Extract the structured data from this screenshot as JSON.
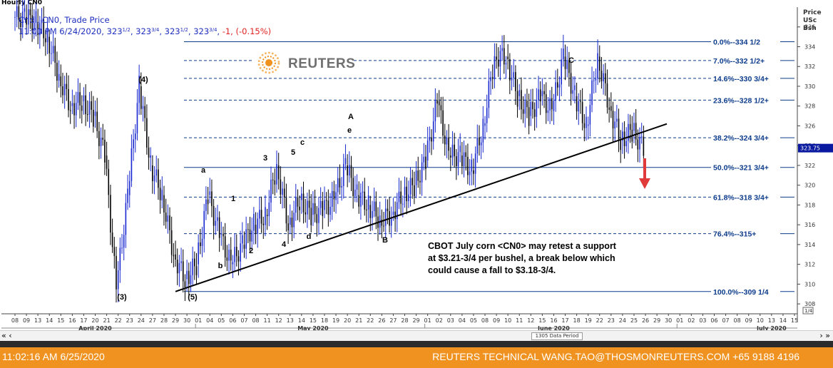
{
  "window": {
    "title": "Hourly CN0"
  },
  "info": {
    "line1": "Cndl, CN0, Trade Price",
    "line2_prefix": "11:00 PM 6/24/2020, 323",
    "open_frac": "1/2",
    "high": "323",
    "high_frac": "3/4",
    "low": "323",
    "low_frac": "1/2",
    "close": "323",
    "close_frac": "3/4",
    "change": "-1, (-0.15%)"
  },
  "logo": {
    "text": "REUTERS"
  },
  "y_axis": {
    "header": [
      "Price",
      "USc",
      "Bsh"
    ],
    "ticks": [
      308,
      310,
      312,
      314,
      316,
      318,
      320,
      322,
      324,
      326,
      328,
      330,
      332,
      334,
      336
    ],
    "current_price_label": "323.75",
    "range_label": "1/4"
  },
  "x_axis": {
    "day_labels": [
      "08",
      "09",
      "13",
      "14",
      "15",
      "16",
      "17",
      "20",
      "21",
      "22",
      "23",
      "24",
      "27",
      "28",
      "29",
      "30",
      "01",
      "04",
      "05",
      "06",
      "07",
      "08",
      "11",
      "12",
      "13",
      "14",
      "15",
      "18",
      "19",
      "20",
      "21",
      "22",
      "26",
      "27",
      "28",
      "29",
      "01",
      "02",
      "03",
      "04",
      "05",
      "08",
      "09",
      "10",
      "11",
      "12",
      "15",
      "16",
      "17",
      "18",
      "19",
      "22",
      "23",
      "24",
      "25",
      "26",
      "29",
      "30",
      "01",
      "02",
      "03",
      "06",
      "07",
      "08",
      "09",
      "10",
      "13",
      "14",
      "15"
    ],
    "months": [
      "April 2020",
      "May 2020",
      "June 2020",
      "July 2020"
    ],
    "period": "1305 Data Period"
  },
  "fib_levels": [
    {
      "label": "0.0%--334 1/2",
      "price": 334.5
    },
    {
      "label": "7.0%--332 1/2+",
      "price": 332.6
    },
    {
      "label": "14.6%--330 3/4+",
      "price": 330.8
    },
    {
      "label": "23.6%--328 1/2+",
      "price": 328.6
    },
    {
      "label": "38.2%--324 3/4+",
      "price": 324.8
    },
    {
      "label": "50.0%--321 3/4+",
      "price": 321.8
    },
    {
      "label": "61.8%--318 3/4+",
      "price": 318.8
    },
    {
      "label": "76.4%--315+",
      "price": 315.1
    },
    {
      "label": "100.0%--309 1/4",
      "price": 309.25
    }
  ],
  "wave_labels": [
    "(4)",
    "(3)",
    "(5)",
    "a",
    "b",
    "1",
    "2",
    "3",
    "4",
    "5",
    "c",
    "d",
    "A",
    "e",
    "B",
    "C"
  ],
  "annotation": {
    "lines": [
      "CBOT July corn <CN0> may retest a support",
      "at $3.21-3/4 per bushel, a break below which",
      " could cause a fall to $3.18-3/4."
    ]
  },
  "footer": {
    "timestamp": "11:02:16 AM 6/25/2020",
    "credit": "REUTERS TECHNICAL  WANG.TAO@THOSMONREUTERS.COM  +65 9188 4196"
  },
  "chart_data": {
    "type": "candlestick",
    "title": "",
    "xlabel": "",
    "ylabel": "Price USc Bsh",
    "ylim": [
      307,
      338
    ],
    "x": [
      "2020-04-08",
      "2020-04-09",
      "2020-04-13",
      "2020-04-14",
      "2020-04-15",
      "2020-04-16",
      "2020-04-17",
      "2020-04-20",
      "2020-04-21",
      "2020-04-22",
      "2020-04-23",
      "2020-04-24",
      "2020-04-27",
      "2020-04-28",
      "2020-04-29",
      "2020-04-30",
      "2020-05-01",
      "2020-05-04",
      "2020-05-05",
      "2020-05-06",
      "2020-05-07",
      "2020-05-08",
      "2020-05-11",
      "2020-05-12",
      "2020-05-13",
      "2020-05-14",
      "2020-05-15",
      "2020-05-18",
      "2020-05-19",
      "2020-05-20",
      "2020-05-21",
      "2020-05-22",
      "2020-05-26",
      "2020-05-27",
      "2020-05-28",
      "2020-05-29",
      "2020-06-01",
      "2020-06-02",
      "2020-06-03",
      "2020-06-04",
      "2020-06-05",
      "2020-06-08",
      "2020-06-09",
      "2020-06-10",
      "2020-06-11",
      "2020-06-12",
      "2020-06-15",
      "2020-06-16",
      "2020-06-17",
      "2020-06-18",
      "2020-06-19",
      "2020-06-22",
      "2020-06-23",
      "2020-06-24",
      "2020-06-25"
    ],
    "close": [
      337,
      336.5,
      335,
      331,
      328,
      328.5,
      327,
      323,
      309.5,
      319,
      330,
      322,
      319,
      313,
      310.5,
      312,
      319,
      315,
      312,
      314,
      316,
      317,
      322,
      316,
      318.5,
      317,
      317.5,
      318.5,
      322,
      319,
      318,
      316.5,
      317,
      319,
      320,
      322.5,
      328.5,
      323,
      323,
      321.5,
      326,
      333,
      333,
      329,
      327,
      329,
      327.5,
      333,
      329,
      326,
      333,
      328,
      324.5,
      325.5,
      323.75
    ],
    "trendline": {
      "start": [
        "2020-04-29",
        309.25
      ],
      "end": [
        "2020-06-26",
        326.2
      ]
    },
    "current_price": 323.75,
    "projection_arrow": {
      "from": 323.0,
      "to": 320.0,
      "date": "2020-06-25"
    }
  }
}
